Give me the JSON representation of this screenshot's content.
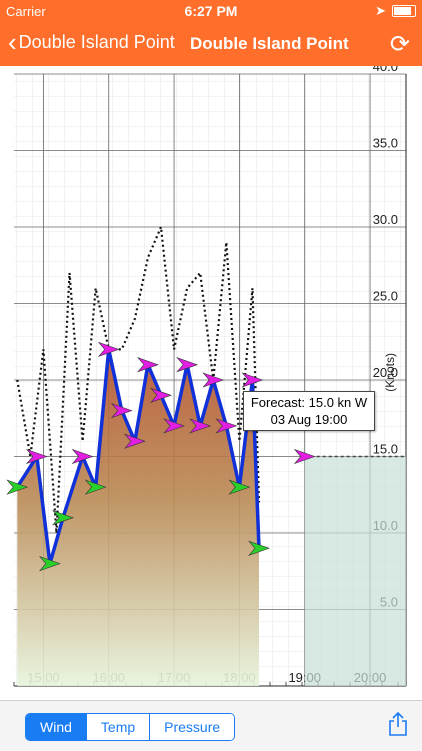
{
  "status_bar": {
    "carrier": "Carrier",
    "time": "6:27 PM"
  },
  "nav": {
    "back_label": "Double Island  Point",
    "title": "Double Island  Point"
  },
  "tabs": [
    {
      "label": "Wind",
      "active": true
    },
    {
      "label": "Temp",
      "active": false
    },
    {
      "label": "Pressure",
      "active": false
    }
  ],
  "colors": {
    "accent": "#ff6f2b",
    "series": "#1030d8",
    "arrow": "#e21ee2",
    "arrow_green": "#2ad02a"
  },
  "icons": {
    "back": "chevron-left-icon",
    "refresh": "refresh-icon",
    "share": "share-icon",
    "wifi": "wifi-icon",
    "battery": "battery-icon",
    "location": "location-icon"
  },
  "tooltip": {
    "line1": "Forecast: 15.0 kn W",
    "line2": "03 Aug 19:00"
  },
  "chart_data": {
    "type": "line",
    "ylabel": "(Knots)",
    "ylim": [
      0,
      40
    ],
    "y_ticks": [
      "5.0",
      "10.0",
      "15.0",
      "20.0",
      "25.0",
      "30.0",
      "35.0",
      "40.0"
    ],
    "x_ticks": [
      "15:00",
      "16:00",
      "17:00",
      "18:00",
      "19:00",
      "20:00"
    ],
    "series": [
      {
        "x": [
          14.6,
          14.9,
          15.1,
          15.3,
          15.6,
          15.8,
          16.0,
          16.2,
          16.4,
          16.6,
          16.8,
          17.0,
          17.2,
          17.4,
          17.6,
          17.8,
          18.0,
          18.2,
          18.3
        ],
        "values": [
          13.0,
          15.0,
          8.0,
          11.0,
          15.0,
          13.0,
          22.0,
          18.0,
          16.0,
          21.0,
          19.0,
          17.0,
          21.0,
          17.0,
          20.0,
          17.0,
          13.0,
          20.0,
          9.0
        ]
      },
      {
        "x": [
          14.6,
          14.8,
          15.0,
          15.2,
          15.4,
          15.6,
          15.8,
          16.0,
          16.2,
          16.4,
          16.6,
          16.8,
          17.0,
          17.2,
          17.4,
          17.6,
          17.8,
          18.0,
          18.2,
          18.3
        ],
        "values": [
          20.0,
          15.0,
          22.0,
          10.0,
          27.0,
          16.0,
          26.0,
          22.0,
          22.0,
          24.0,
          28.0,
          30.0,
          22.0,
          26.0,
          27.0,
          20.0,
          29.0,
          16.0,
          26.0,
          12.0
        ]
      }
    ],
    "forecast": {
      "x": [
        19.0,
        20.5
      ],
      "values": [
        15.0,
        15.0
      ]
    }
  }
}
